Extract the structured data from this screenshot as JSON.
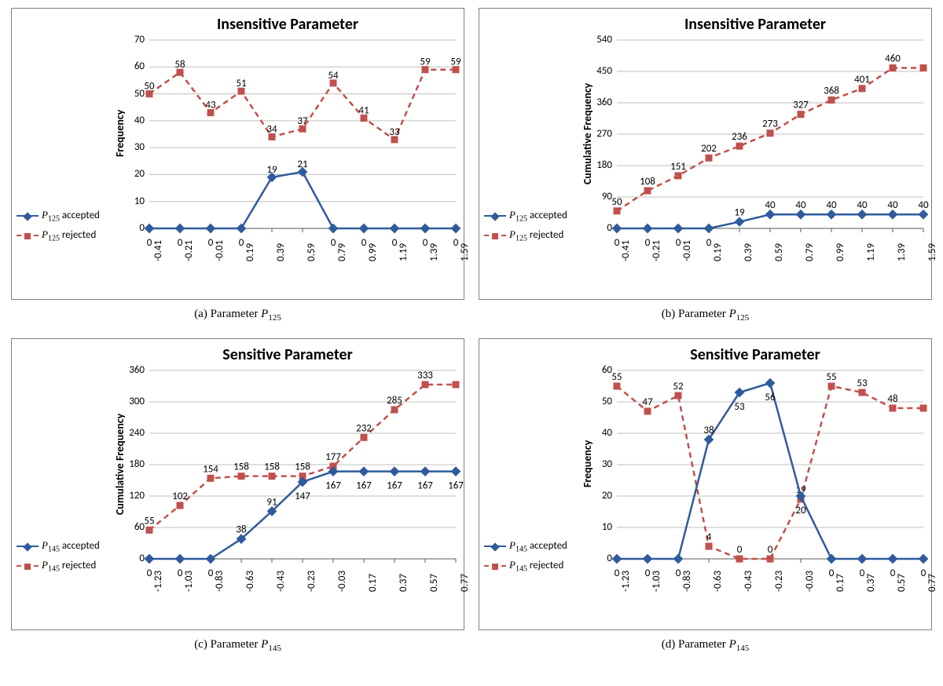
{
  "colors": {
    "accepted": "#2f5b9c",
    "rejected": "#c0504d",
    "grid": "#bfbfbf",
    "border": "#808080",
    "background": "#ffffff",
    "tick": "#595959",
    "text": "#000000"
  },
  "typography": {
    "title_fontsize": 20,
    "label_fontsize": 14,
    "tick_fontsize": 13,
    "caption_fontsize": 15
  },
  "panels": [
    {
      "id": "a",
      "title": "Insensitive Parameter",
      "ylabel": "Frequency",
      "caption_prefix": "(a) Parameter ",
      "caption_param": "P",
      "caption_sub": "125",
      "x_categories": [
        "-0.41",
        "-0.21",
        "-0.01",
        "0.19",
        "0.39",
        "0.59",
        "0.79",
        "0.99",
        "1.19",
        "1.39",
        "1.59"
      ],
      "ylim": [
        0,
        70
      ],
      "ytick_step": 10,
      "legend_param": "P",
      "legend_sub": "125",
      "series": {
        "accepted": {
          "values": [
            0,
            0,
            0,
            0,
            19,
            21,
            0,
            0,
            0,
            0,
            0
          ],
          "labels": [
            "0",
            "0",
            "0",
            "0",
            "19",
            "21",
            "0",
            "0",
            "0",
            "0",
            "0"
          ],
          "label_offsets": [
            -12,
            -12,
            -12,
            -12,
            4,
            4,
            -12,
            -12,
            -12,
            -12,
            -12
          ],
          "color": "#2f5b9c",
          "marker": "diamond",
          "dash": "solid",
          "width": 2.5
        },
        "rejected": {
          "values": [
            50,
            58,
            43,
            51,
            34,
            37,
            54,
            41,
            33,
            59,
            59
          ],
          "labels": [
            "50",
            "58",
            "43",
            "51",
            "34",
            "37",
            "54",
            "41",
            "33",
            "59",
            "59"
          ],
          "label_offsets": [
            4,
            4,
            4,
            4,
            4,
            4,
            4,
            4,
            4,
            4,
            4
          ],
          "show_last_label": false,
          "color": "#c0504d",
          "marker": "square",
          "dash": "dashed",
          "width": 2.5
        }
      }
    },
    {
      "id": "b",
      "title": "Insensitive Parameter",
      "ylabel": "Cumulative Frequency",
      "caption_prefix": "(b) Parameter ",
      "caption_param": "P",
      "caption_sub": "125",
      "x_categories": [
        "-0.41",
        "-0.21",
        "-0.01",
        "0.19",
        "0.39",
        "0.59",
        "0.79",
        "0.99",
        "1.19",
        "1.39",
        "1.59"
      ],
      "ylim": [
        0,
        540
      ],
      "ytick_step": 90,
      "legend_param": "P",
      "legend_sub": "125",
      "series": {
        "accepted": {
          "values": [
            0,
            0,
            0,
            0,
            19,
            40,
            40,
            40,
            40,
            40,
            40
          ],
          "labels": [
            "0",
            "0",
            "0",
            "0",
            "19",
            "40",
            "40",
            "40",
            "40",
            "40",
            "40"
          ],
          "label_offsets": [
            -12,
            -12,
            -12,
            -12,
            6,
            6,
            6,
            6,
            6,
            6,
            6
          ],
          "color": "#2f5b9c",
          "marker": "diamond",
          "dash": "solid",
          "width": 2.5
        },
        "rejected": {
          "values": [
            50,
            108,
            151,
            202,
            236,
            273,
            327,
            368,
            401,
            460,
            460
          ],
          "labels": [
            "50",
            "108",
            "151",
            "202",
            "236",
            "273",
            "327",
            "368",
            "401",
            "460",
            ""
          ],
          "label_offsets": [
            6,
            6,
            6,
            6,
            6,
            6,
            6,
            6,
            6,
            6,
            6
          ],
          "color": "#c0504d",
          "marker": "square",
          "dash": "dashed",
          "width": 2.5
        }
      }
    },
    {
      "id": "c",
      "title": "Sensitive Parameter",
      "ylabel": "Cumulative Frequency",
      "caption_prefix": "(c) Parameter ",
      "caption_param": "P",
      "caption_sub": "145",
      "x_categories": [
        "-1.23",
        "-1.03",
        "-0.83",
        "-0.63",
        "-0.43",
        "-0.23",
        "-0.03",
        "0.17",
        "0.37",
        "0.57",
        "0.77"
      ],
      "ylim": [
        0,
        360
      ],
      "ytick_step": 60,
      "legend_param": "P",
      "legend_sub": "145",
      "series": {
        "accepted": {
          "values": [
            0,
            0,
            0,
            38,
            91,
            147,
            167,
            167,
            167,
            167,
            167
          ],
          "labels": [
            "0",
            "0",
            "0",
            "38",
            "91",
            "147",
            "167",
            "167",
            "167",
            "167",
            "167"
          ],
          "label_offsets": [
            -12,
            -12,
            -12,
            6,
            6,
            -12,
            -12,
            -12,
            -12,
            -12,
            -12
          ],
          "color": "#2f5b9c",
          "marker": "diamond",
          "dash": "solid",
          "width": 2.5
        },
        "rejected": {
          "values": [
            55,
            102,
            154,
            158,
            158,
            158,
            177,
            232,
            285,
            333,
            333
          ],
          "labels": [
            "55",
            "102",
            "154",
            "158",
            "158",
            "158",
            "177",
            "232",
            "285",
            "333",
            ""
          ],
          "label_offsets": [
            6,
            6,
            6,
            6,
            6,
            6,
            6,
            6,
            6,
            6,
            6
          ],
          "color": "#c0504d",
          "marker": "square",
          "dash": "dashed",
          "width": 2.5
        }
      }
    },
    {
      "id": "d",
      "title": "Sensitive Parameter",
      "ylabel": "Frequency",
      "caption_prefix": "(d) Parameter ",
      "caption_param": "P",
      "caption_sub": "145",
      "x_categories": [
        "-1.23",
        "-1.03",
        "-0.83",
        "-0.63",
        "-0.43",
        "-0.23",
        "-0.03",
        "0.17",
        "0.37",
        "0.57",
        "0.77"
      ],
      "ylim": [
        0,
        60
      ],
      "ytick_step": 10,
      "legend_param": "P",
      "legend_sub": "145",
      "series": {
        "accepted": {
          "values": [
            0,
            0,
            0,
            38,
            53,
            56,
            20,
            0,
            0,
            0,
            0
          ],
          "labels": [
            "0",
            "0",
            "0",
            "38",
            "53",
            "56",
            "20",
            "0",
            "0",
            "0",
            "0"
          ],
          "label_offsets": [
            -12,
            -12,
            -12,
            6,
            -12,
            -12,
            -12,
            -12,
            -12,
            -12,
            -12
          ],
          "color": "#2f5b9c",
          "marker": "diamond",
          "dash": "solid",
          "width": 2.5
        },
        "rejected": {
          "values": [
            55,
            47,
            52,
            4,
            0,
            0,
            19,
            55,
            53,
            48,
            48
          ],
          "labels": [
            "55",
            "47",
            "52",
            "4",
            "0",
            "0",
            "19",
            "55",
            "53",
            "48",
            ""
          ],
          "label_offsets": [
            6,
            6,
            6,
            6,
            6,
            6,
            6,
            6,
            6,
            6,
            6
          ],
          "color": "#c0504d",
          "marker": "square",
          "dash": "dashed",
          "width": 2.5
        }
      }
    }
  ]
}
